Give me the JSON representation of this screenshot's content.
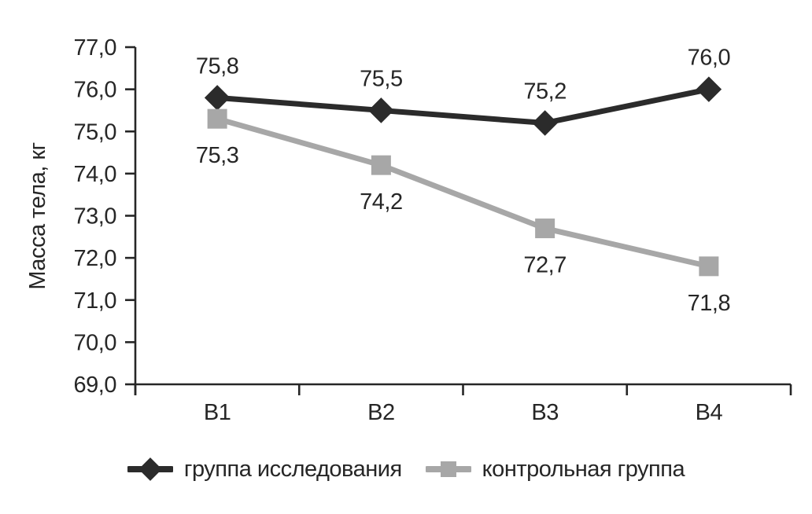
{
  "chart_data": {
    "type": "line",
    "categories": [
      "В1",
      "В2",
      "В3",
      "В4"
    ],
    "series": [
      {
        "key": "study-group",
        "name": "группа исследования",
        "values": [
          75.8,
          75.5,
          75.2,
          76.0
        ],
        "labels": [
          "75,8",
          "75,5",
          "75,2",
          "76,0"
        ],
        "color": "#2b2b2b",
        "marker": "diamond",
        "label_side": "above"
      },
      {
        "key": "control-group",
        "name": "контрольная группа",
        "values": [
          75.3,
          74.2,
          72.7,
          71.8
        ],
        "labels": [
          "75,3",
          "74,2",
          "72,7",
          "71,8"
        ],
        "color": "#a7a7a7",
        "marker": "square",
        "label_side": "below"
      }
    ],
    "xlabel": "",
    "ylabel": "Масса тела, кг",
    "ylim": [
      69.0,
      77.0
    ],
    "ytick_step": 1.0,
    "yticks": [
      "77,0",
      "76,0",
      "75,0",
      "74,0",
      "73,0",
      "72,0",
      "71,0",
      "70,0",
      "69,0"
    ],
    "grid": false,
    "legend_position": "bottom",
    "axis_color": "#262626",
    "text_color": "#262626"
  }
}
